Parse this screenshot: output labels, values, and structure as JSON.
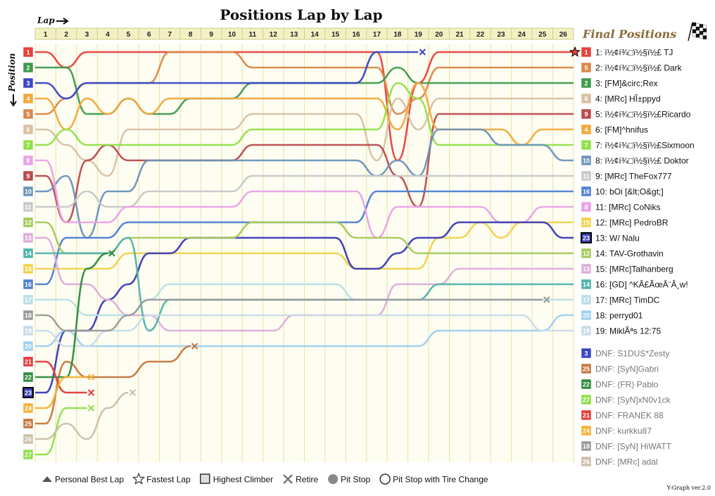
{
  "chart_data": {
    "type": "line",
    "title": "Positions Lap by Lap",
    "xlabel": "Lap",
    "ylabel": "Position",
    "laps": [
      1,
      2,
      3,
      4,
      5,
      6,
      7,
      8,
      9,
      10,
      11,
      12,
      13,
      14,
      15,
      16,
      17,
      18,
      19,
      20,
      21,
      22,
      23,
      24,
      25,
      26
    ],
    "positions": [
      1,
      2,
      3,
      4,
      5,
      6,
      7,
      8,
      9,
      10,
      11,
      12,
      13,
      14,
      15,
      16,
      17,
      18,
      19,
      20,
      21,
      22,
      23,
      24,
      25,
      26,
      27
    ],
    "final_title": "Final Positions",
    "final_positions": [
      {
        "box": "1",
        "label": "1: ï½¢í¾□ï½§ï½£ TJ",
        "color": "#e8413c"
      },
      {
        "box": "5",
        "label": "2: ï½¢í¾□ï½§ï½£ Dark",
        "color": "#d9884a"
      },
      {
        "box": "2",
        "label": "3: [FM]&circ;Rex",
        "color": "#3f9a4c"
      },
      {
        "box": "6",
        "label": "4: [MRc] HÎ±ppyd",
        "color": "#d8c1a4"
      },
      {
        "box": "9",
        "label": "5: ï½¢í¾□ï½§ï½£Ricardo",
        "color": "#b94b4f"
      },
      {
        "box": "4",
        "label": "6: [FM]^hnifus",
        "color": "#f3a93b"
      },
      {
        "box": "7",
        "label": "7: ï½¢í¾□ï½§ï½£Sixmoon",
        "color": "#92e04a"
      },
      {
        "box": "10",
        "label": "8: ï½¢í¾□ï½§ï½£ Doktor",
        "color": "#6c93bb"
      },
      {
        "box": "11",
        "label": "9: [MRc] TheFox777",
        "color": "#c8c8c8"
      },
      {
        "box": "16",
        "label": "10: bOi [&lt;O&gt;]",
        "color": "#4f7fd0"
      },
      {
        "box": "8",
        "label": "11: [MRc] CoNiks",
        "color": "#e9a3e6"
      },
      {
        "box": "15",
        "label": "12: [MRc] PedroBR",
        "color": "#f1d24b"
      },
      {
        "box": "23",
        "label": "13: W/ Nalu",
        "color": "#3b3bb6",
        "highlight": true
      },
      {
        "box": "12",
        "label": "14: TAV-Grothavin",
        "color": "#a6c95a"
      },
      {
        "box": "13",
        "label": "15: [MRc]Talhanberg",
        "color": "#dcaed8"
      },
      {
        "box": "14",
        "label": "16: [GD] ^KÂ£ÃœÂ¨Â¸w!",
        "color": "#4fb3aa"
      },
      {
        "box": "17",
        "label": "17: [MRc] TimDC",
        "color": "#b9dfe6"
      },
      {
        "box": "20",
        "label": "18: perryd01",
        "color": "#9fd0ee"
      },
      {
        "box": "19",
        "label": "19: MiklÃªs 12:75",
        "color": "#c9dce6"
      }
    ],
    "dnf": [
      {
        "box": "3",
        "label": "DNF: S1DUS*Zesty",
        "color": "#3b46c6"
      },
      {
        "box": "25",
        "label": "DNF: [SyN]Gabri",
        "color": "#c4773e"
      },
      {
        "box": "22",
        "label": "DNF: (FR) Pablo",
        "color": "#2e8a3e"
      },
      {
        "box": "27",
        "label": "DNF: [SyN]xN0v1ck",
        "color": "#8fe04b"
      },
      {
        "box": "21",
        "label": "DNF: FRANEK 88",
        "color": "#e63b3b"
      },
      {
        "box": "24",
        "label": "DNF: kurkku87",
        "color": "#f4b236"
      },
      {
        "box": "18",
        "label": "DNF: [SyN] HiWATT",
        "color": "#9a9a9a"
      },
      {
        "box": "26",
        "label": "DNF: [MRc] adal",
        "color": "#cbbfa8"
      }
    ],
    "start_boxes": [
      {
        "label": "1",
        "color": "#e8413c"
      },
      {
        "label": "2",
        "color": "#3f9a4c"
      },
      {
        "label": "3",
        "color": "#3b46c6"
      },
      {
        "label": "4",
        "color": "#f3a93b"
      },
      {
        "label": "5",
        "color": "#d9884a"
      },
      {
        "label": "6",
        "color": "#d8c1a4"
      },
      {
        "label": "7",
        "color": "#92e04a"
      },
      {
        "label": "8",
        "color": "#e9a3e6"
      },
      {
        "label": "9",
        "color": "#b94b4f"
      },
      {
        "label": "10",
        "color": "#6c93bb"
      },
      {
        "label": "11",
        "color": "#c8c8c8"
      },
      {
        "label": "12",
        "color": "#a6c95a"
      },
      {
        "label": "13",
        "color": "#dcaed8"
      },
      {
        "label": "14",
        "color": "#4fb3aa"
      },
      {
        "label": "15",
        "color": "#f1d24b"
      },
      {
        "label": "16",
        "color": "#4f7fd0"
      },
      {
        "label": "17",
        "color": "#b9dfe6"
      },
      {
        "label": "18",
        "color": "#9a9a9a"
      },
      {
        "label": "19",
        "color": "#c9dce6"
      },
      {
        "label": "20",
        "color": "#9fd0ee"
      },
      {
        "label": "21",
        "color": "#e63b3b"
      },
      {
        "label": "22",
        "color": "#2e8a3e"
      },
      {
        "label": "23",
        "color": "#3b3bb6",
        "highlight": true
      },
      {
        "label": "24",
        "color": "#f4b236"
      },
      {
        "label": "25",
        "color": "#c4773e"
      },
      {
        "label": "26",
        "color": "#cbbfa8"
      },
      {
        "label": "27",
        "color": "#8fe04b"
      }
    ],
    "series": [
      {
        "color": "#e8413c",
        "values": [
          1,
          2,
          1,
          1,
          1,
          1,
          1,
          1,
          1,
          1,
          1,
          1,
          1,
          1,
          1,
          1,
          1,
          8,
          3,
          1,
          1,
          1,
          1,
          1,
          1,
          1
        ]
      },
      {
        "color": "#d9884a",
        "values": [
          5,
          4,
          3,
          3,
          3,
          3,
          1,
          1,
          1,
          1,
          2,
          2,
          2,
          2,
          2,
          2,
          2,
          5,
          4,
          2,
          2,
          2,
          2,
          2,
          2,
          2
        ]
      },
      {
        "color": "#3f9a4c",
        "values": [
          2,
          2,
          5,
          5,
          4,
          5,
          5,
          4,
          4,
          4,
          3,
          3,
          3,
          3,
          3,
          3,
          3,
          2,
          3,
          3,
          3,
          3,
          3,
          3,
          3,
          3
        ]
      },
      {
        "color": "#d8c1a4",
        "values": [
          6,
          7,
          8,
          9,
          6,
          6,
          6,
          6,
          6,
          6,
          5,
          5,
          5,
          5,
          5,
          5,
          8,
          4,
          6,
          4,
          4,
          4,
          4,
          4,
          4,
          4
        ]
      },
      {
        "color": "#b94b4f",
        "values": [
          9,
          12,
          8,
          7,
          8,
          8,
          8,
          8,
          8,
          8,
          7,
          7,
          7,
          7,
          7,
          7,
          7,
          9,
          11,
          5,
          5,
          5,
          5,
          5,
          5,
          5
        ]
      },
      {
        "color": "#f3a93b",
        "values": [
          4,
          6,
          4,
          5,
          4,
          5,
          4,
          4,
          4,
          4,
          4,
          4,
          4,
          4,
          4,
          4,
          4,
          6,
          3,
          6,
          6,
          6,
          6,
          7,
          6,
          6
        ]
      },
      {
        "color": "#92e04a",
        "values": [
          7,
          6,
          7,
          7,
          7,
          7,
          7,
          7,
          7,
          7,
          6,
          6,
          6,
          6,
          6,
          6,
          6,
          3,
          4,
          7,
          7,
          7,
          7,
          7,
          7,
          7
        ]
      },
      {
        "color": "#6c93bb",
        "values": [
          10,
          9,
          13,
          10,
          10,
          8,
          8,
          8,
          8,
          8,
          8,
          8,
          8,
          8,
          8,
          8,
          9,
          8,
          9,
          6,
          6,
          6,
          7,
          7,
          7,
          8
        ]
      },
      {
        "color": "#c8c8c8",
        "values": [
          11,
          11,
          10,
          11,
          11,
          10,
          10,
          10,
          10,
          10,
          9,
          9,
          9,
          9,
          9,
          9,
          9,
          9,
          9,
          9,
          9,
          9,
          9,
          9,
          9,
          9
        ]
      },
      {
        "color": "#4f7fd0",
        "values": [
          16,
          13,
          13,
          13,
          12,
          12,
          12,
          12,
          12,
          12,
          12,
          12,
          12,
          12,
          12,
          12,
          10,
          10,
          10,
          10,
          10,
          10,
          10,
          10,
          10,
          10
        ]
      },
      {
        "color": "#e9a3e6",
        "values": [
          8,
          12,
          12,
          12,
          11,
          11,
          11,
          11,
          11,
          11,
          10,
          10,
          10,
          10,
          10,
          10,
          13,
          11,
          11,
          11,
          11,
          11,
          12,
          12,
          11,
          11
        ]
      },
      {
        "color": "#f1d24b",
        "values": [
          15,
          15,
          15,
          15,
          14,
          14,
          14,
          14,
          14,
          14,
          14,
          14,
          14,
          14,
          14,
          15,
          15,
          15,
          15,
          13,
          13,
          12,
          13,
          12,
          12,
          12
        ]
      },
      {
        "color": "#3b3bb6",
        "values": [
          23,
          19,
          19,
          17,
          16,
          14,
          14,
          13,
          13,
          13,
          13,
          13,
          13,
          13,
          13,
          15,
          15,
          14,
          13,
          13,
          12,
          12,
          12,
          12,
          12,
          13
        ]
      },
      {
        "color": "#a6c95a",
        "values": [
          12,
          14,
          14,
          14,
          13,
          13,
          13,
          13,
          13,
          13,
          12,
          12,
          12,
          12,
          12,
          13,
          13,
          13,
          14,
          14,
          14,
          14,
          14,
          14,
          14,
          14
        ]
      },
      {
        "color": "#dcaed8",
        "values": [
          13,
          16,
          16,
          17,
          18,
          18,
          19,
          19,
          19,
          19,
          19,
          19,
          18,
          18,
          18,
          18,
          18,
          16,
          16,
          16,
          15,
          15,
          15,
          15,
          15,
          15
        ]
      },
      {
        "color": "#4fb3aa",
        "values": [
          14,
          14,
          14,
          14,
          13,
          19,
          17,
          17,
          17,
          17,
          17,
          17,
          17,
          17,
          17,
          17,
          17,
          17,
          17,
          16,
          16,
          16,
          16,
          16,
          16,
          16
        ]
      },
      {
        "color": "#b9dfe6",
        "values": [
          17,
          17,
          18,
          18,
          18,
          17,
          16,
          16,
          16,
          16,
          16,
          16,
          16,
          16,
          16,
          17,
          17,
          17,
          17,
          17,
          17,
          17,
          17,
          17,
          17,
          17
        ]
      },
      {
        "color": "#9fd0ee",
        "values": [
          20,
          19,
          20,
          20,
          20,
          20,
          20,
          20,
          20,
          20,
          20,
          20,
          20,
          20,
          20,
          20,
          20,
          20,
          20,
          19,
          19,
          19,
          19,
          19,
          19,
          18
        ]
      },
      {
        "color": "#c9dce6",
        "values": [
          19,
          20,
          20,
          19,
          19,
          18,
          18,
          18,
          18,
          18,
          18,
          18,
          18,
          18,
          18,
          18,
          18,
          18,
          18,
          18,
          18,
          18,
          18,
          18,
          19,
          19
        ]
      },
      {
        "color": "#3b46c6",
        "values": [
          3,
          4,
          3,
          3,
          3,
          3,
          3,
          3,
          3,
          3,
          3,
          3,
          3,
          3,
          3,
          3,
          1,
          1,
          1
        ]
      },
      {
        "color": "#c4773e",
        "values": [
          25,
          21,
          22,
          22,
          22,
          21,
          21,
          20
        ]
      },
      {
        "color": "#2e8a3e",
        "values": [
          22,
          22,
          15,
          14
        ]
      },
      {
        "color": "#8fe04b",
        "values": [
          27,
          24,
          24
        ]
      },
      {
        "color": "#e63b3b",
        "values": [
          21,
          23,
          23
        ]
      },
      {
        "color": "#f4b236",
        "values": [
          24,
          22,
          22
        ]
      },
      {
        "color": "#9a9a9a",
        "values": [
          18,
          19,
          19,
          19,
          18,
          17,
          17,
          17,
          17,
          17,
          17,
          17,
          17,
          17,
          17,
          17,
          17,
          17,
          17,
          17,
          17,
          17,
          17,
          17,
          17
        ]
      },
      {
        "color": "#cbbfa8",
        "values": [
          26,
          25,
          26,
          24,
          23
        ]
      }
    ],
    "legend": [
      {
        "icon": "triangle-icon",
        "label": "Personal Best Lap"
      },
      {
        "icon": "star-icon",
        "label": "Fastest Lap"
      },
      {
        "icon": "square-icon",
        "label": "Highest Climber"
      },
      {
        "icon": "cross-icon",
        "label": "Retire"
      },
      {
        "icon": "pit-icon",
        "label": "Pit Stop"
      },
      {
        "icon": "pit-tire-icon",
        "label": "Pit Stop with Tire Change"
      }
    ],
    "version": "Y-Graph ver.2.0"
  }
}
